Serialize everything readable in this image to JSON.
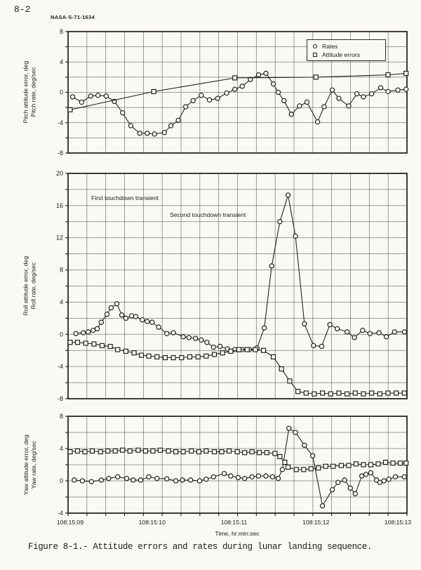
{
  "page": {
    "page_number": "8-2",
    "doc_id": "NASA-S-71-1634",
    "caption": "Figure 8-1.- Attitude errors and rates during lunar landing sequence.",
    "x_axis": {
      "title": "Time, hr:min:sec",
      "tick_labels": [
        "108:15:09",
        "108:15:10",
        "108:15:11",
        "108:15:12",
        "108:15:13"
      ]
    },
    "legend": {
      "rates": "Rates",
      "attitude_errors": "Attitude errors"
    }
  },
  "chart_data": [
    {
      "type": "line",
      "id": "pitch",
      "ylabel_line1": "Pitch attitude error, deg",
      "ylabel_line2": "Pitch rate, deg/sec",
      "ylim": [
        -8,
        8
      ],
      "ytick_step": 4,
      "grid_step": 2,
      "x_seconds_range": [
        0,
        4
      ],
      "grid": "on",
      "legend_position": "upper-right-inside",
      "annotations": [],
      "series": [
        {
          "name": "Rates",
          "marker": "circle",
          "points": [
            [
              0.03,
              -0.6
            ],
            [
              0.14,
              -1.3
            ],
            [
              0.25,
              -0.5
            ],
            [
              0.34,
              -0.4
            ],
            [
              0.44,
              -0.5
            ],
            [
              0.54,
              -1.2
            ],
            [
              0.64,
              -2.7
            ],
            [
              0.74,
              -4.4
            ],
            [
              0.85,
              -5.4
            ],
            [
              0.94,
              -5.4
            ],
            [
              1.03,
              -5.5
            ],
            [
              1.15,
              -5.3
            ],
            [
              1.23,
              -4.4
            ],
            [
              1.32,
              -3.7
            ],
            [
              1.41,
              -1.9
            ],
            [
              1.5,
              -1.1
            ],
            [
              1.6,
              -0.4
            ],
            [
              1.7,
              -1.0
            ],
            [
              1.8,
              -0.8
            ],
            [
              1.91,
              -0.1
            ],
            [
              2.01,
              0.4
            ],
            [
              2.1,
              0.8
            ],
            [
              2.2,
              1.7
            ],
            [
              2.3,
              2.3
            ],
            [
              2.39,
              2.5
            ],
            [
              2.48,
              1.1
            ],
            [
              2.54,
              0.0
            ],
            [
              2.61,
              -1.1
            ],
            [
              2.7,
              -2.9
            ],
            [
              2.8,
              -1.8
            ],
            [
              2.89,
              -1.3
            ],
            [
              3.02,
              -3.9
            ],
            [
              3.1,
              -1.9
            ],
            [
              3.2,
              0.3
            ],
            [
              3.28,
              -0.8
            ],
            [
              3.4,
              -1.8
            ],
            [
              3.5,
              -0.2
            ],
            [
              3.58,
              -0.6
            ],
            [
              3.68,
              -0.2
            ],
            [
              3.79,
              0.6
            ],
            [
              3.88,
              0.1
            ],
            [
              4.0,
              0.3
            ],
            [
              4.1,
              0.4
            ]
          ]
        },
        {
          "name": "Attitude errors",
          "marker": "square",
          "points": [
            [
              0,
              -2.3
            ],
            [
              1.02,
              0.1
            ],
            [
              2.01,
              1.9
            ],
            [
              3.0,
              2.0
            ],
            [
              3.88,
              2.3
            ],
            [
              4.1,
              2.5
            ]
          ]
        }
      ]
    },
    {
      "type": "line",
      "id": "roll",
      "ylabel_line1": "Roll attitude error, deg",
      "ylabel_line2": "Roll rate, deg/sec",
      "ylim": [
        -8,
        20
      ],
      "ytick_step": 4,
      "grid_step": 2,
      "x_seconds_range": [
        0,
        4
      ],
      "grid": "on",
      "annotations": [
        {
          "text": "First touchdown transient",
          "t": 0.29,
          "value": 16.8
        },
        {
          "text": "Second touchdown transient",
          "t": 1.25,
          "value": 14.8
        }
      ],
      "series": [
        {
          "name": "Rates",
          "marker": "circle",
          "points": [
            [
              0.07,
              0.1
            ],
            [
              0.16,
              0.2
            ],
            [
              0.22,
              0.3
            ],
            [
              0.28,
              0.5
            ],
            [
              0.33,
              0.7
            ],
            [
              0.38,
              1.5
            ],
            [
              0.45,
              2.5
            ],
            [
              0.5,
              3.3
            ],
            [
              0.57,
              3.8
            ],
            [
              0.63,
              2.4
            ],
            [
              0.68,
              2.0
            ],
            [
              0.75,
              2.3
            ],
            [
              0.8,
              2.2
            ],
            [
              0.88,
              1.8
            ],
            [
              0.94,
              1.6
            ],
            [
              1.0,
              1.5
            ],
            [
              1.08,
              0.9
            ],
            [
              1.18,
              0.1
            ],
            [
              1.26,
              0.2
            ],
            [
              1.38,
              -0.3
            ],
            [
              1.45,
              -0.4
            ],
            [
              1.53,
              -0.5
            ],
            [
              1.6,
              -0.7
            ],
            [
              1.67,
              -1.0
            ],
            [
              1.75,
              -1.6
            ],
            [
              1.83,
              -1.5
            ],
            [
              1.92,
              -1.8
            ],
            [
              2.01,
              -1.9
            ],
            [
              2.1,
              -1.9
            ],
            [
              2.19,
              -1.9
            ],
            [
              2.28,
              -1.7
            ],
            [
              2.37,
              0.8
            ],
            [
              2.46,
              8.5
            ],
            [
              2.56,
              14.0
            ],
            [
              2.66,
              17.3
            ],
            [
              2.75,
              12.2
            ],
            [
              2.86,
              1.3
            ],
            [
              2.97,
              -1.4
            ],
            [
              3.07,
              -1.5
            ],
            [
              3.17,
              1.2
            ],
            [
              3.26,
              0.7
            ],
            [
              3.38,
              0.3
            ],
            [
              3.47,
              -0.4
            ],
            [
              3.57,
              0.5
            ],
            [
              3.66,
              0.1
            ],
            [
              3.77,
              0.2
            ],
            [
              3.86,
              -0.3
            ],
            [
              3.96,
              0.3
            ],
            [
              4.08,
              0.3
            ]
          ]
        },
        {
          "name": "Attitude errors",
          "marker": "square",
          "points": [
            [
              0,
              -1.0
            ],
            [
              0.09,
              -1.0
            ],
            [
              0.19,
              -1.1
            ],
            [
              0.29,
              -1.2
            ],
            [
              0.39,
              -1.4
            ],
            [
              0.49,
              -1.5
            ],
            [
              0.58,
              -1.9
            ],
            [
              0.68,
              -2.1
            ],
            [
              0.78,
              -2.3
            ],
            [
              0.87,
              -2.6
            ],
            [
              0.96,
              -2.7
            ],
            [
              1.06,
              -2.8
            ],
            [
              1.16,
              -2.9
            ],
            [
              1.26,
              -2.9
            ],
            [
              1.36,
              -2.9
            ],
            [
              1.46,
              -2.8
            ],
            [
              1.56,
              -2.8
            ],
            [
              1.66,
              -2.7
            ],
            [
              1.76,
              -2.5
            ],
            [
              1.86,
              -2.3
            ],
            [
              1.96,
              -2.1
            ],
            [
              2.06,
              -1.9
            ],
            [
              2.16,
              -1.9
            ],
            [
              2.26,
              -1.9
            ],
            [
              2.36,
              -2.0
            ],
            [
              2.48,
              -2.8
            ],
            [
              2.58,
              -4.3
            ],
            [
              2.68,
              -5.8
            ],
            [
              2.78,
              -7.1
            ],
            [
              2.88,
              -7.3
            ],
            [
              2.98,
              -7.4
            ],
            [
              3.08,
              -7.3
            ],
            [
              3.18,
              -7.4
            ],
            [
              3.28,
              -7.3
            ],
            [
              3.38,
              -7.4
            ],
            [
              3.48,
              -7.3
            ],
            [
              3.58,
              -7.4
            ],
            [
              3.68,
              -7.3
            ],
            [
              3.78,
              -7.4
            ],
            [
              3.88,
              -7.3
            ],
            [
              3.98,
              -7.3
            ],
            [
              4.08,
              -7.3
            ]
          ]
        }
      ]
    },
    {
      "type": "line",
      "id": "yaw",
      "ylabel_line1": "Yaw attitude error, deg",
      "ylabel_line2": "Yaw rate, deg/sec",
      "ylim": [
        -4,
        8
      ],
      "ytick_step": 4,
      "grid_step": 2,
      "x_seconds_range": [
        0,
        4
      ],
      "grid": "on",
      "annotations": [],
      "series": [
        {
          "name": "Rates",
          "marker": "circle",
          "points": [
            [
              0.05,
              0.1
            ],
            [
              0.15,
              0.0
            ],
            [
              0.26,
              -0.1
            ],
            [
              0.38,
              0.1
            ],
            [
              0.47,
              0.3
            ],
            [
              0.58,
              0.5
            ],
            [
              0.69,
              0.3
            ],
            [
              0.77,
              0.1
            ],
            [
              0.86,
              0.1
            ],
            [
              0.96,
              0.5
            ],
            [
              1.06,
              0.3
            ],
            [
              1.18,
              0.25
            ],
            [
              1.29,
              0.0
            ],
            [
              1.37,
              0.1
            ],
            [
              1.47,
              0.1
            ],
            [
              1.58,
              0.0
            ],
            [
              1.66,
              0.2
            ],
            [
              1.75,
              0.5
            ],
            [
              1.88,
              0.9
            ],
            [
              1.96,
              0.6
            ],
            [
              2.05,
              0.4
            ],
            [
              2.13,
              0.3
            ],
            [
              2.22,
              0.5
            ],
            [
              2.3,
              0.6
            ],
            [
              2.39,
              0.6
            ],
            [
              2.47,
              0.5
            ],
            [
              2.54,
              0.3
            ],
            [
              2.59,
              1.4
            ],
            [
              2.67,
              6.5
            ],
            [
              2.75,
              6.0
            ],
            [
              2.86,
              4.4
            ],
            [
              2.96,
              3.1
            ],
            [
              3.08,
              -3.1
            ],
            [
              3.2,
              -1.1
            ],
            [
              3.27,
              -0.2
            ],
            [
              3.35,
              0.1
            ],
            [
              3.42,
              -0.9
            ],
            [
              3.48,
              -1.6
            ],
            [
              3.56,
              0.6
            ],
            [
              3.61,
              0.8
            ],
            [
              3.67,
              1.0
            ],
            [
              3.74,
              0.1
            ],
            [
              3.78,
              -0.2
            ],
            [
              3.83,
              0.0
            ],
            [
              3.89,
              0.2
            ],
            [
              3.97,
              0.5
            ],
            [
              4.08,
              0.5
            ]
          ]
        },
        {
          "name": "Attitude errors",
          "marker": "square",
          "points": [
            [
              0.0,
              3.6
            ],
            [
              0.09,
              3.7
            ],
            [
              0.18,
              3.6
            ],
            [
              0.27,
              3.7
            ],
            [
              0.37,
              3.6
            ],
            [
              0.46,
              3.7
            ],
            [
              0.55,
              3.7
            ],
            [
              0.64,
              3.8
            ],
            [
              0.73,
              3.7
            ],
            [
              0.83,
              3.8
            ],
            [
              0.92,
              3.7
            ],
            [
              1.01,
              3.7
            ],
            [
              1.1,
              3.8
            ],
            [
              1.2,
              3.7
            ],
            [
              1.29,
              3.6
            ],
            [
              1.38,
              3.6
            ],
            [
              1.48,
              3.7
            ],
            [
              1.57,
              3.6
            ],
            [
              1.66,
              3.7
            ],
            [
              1.76,
              3.6
            ],
            [
              1.85,
              3.6
            ],
            [
              1.94,
              3.7
            ],
            [
              2.04,
              3.6
            ],
            [
              2.13,
              3.5
            ],
            [
              2.22,
              3.6
            ],
            [
              2.31,
              3.5
            ],
            [
              2.4,
              3.5
            ],
            [
              2.5,
              3.4
            ],
            [
              2.56,
              3.0
            ],
            [
              2.62,
              2.3
            ],
            [
              2.66,
              1.7
            ],
            [
              2.76,
              1.4
            ],
            [
              2.85,
              1.4
            ],
            [
              2.94,
              1.5
            ],
            [
              3.03,
              1.6
            ],
            [
              3.12,
              1.8
            ],
            [
              3.21,
              1.8
            ],
            [
              3.31,
              1.9
            ],
            [
              3.4,
              1.9
            ],
            [
              3.49,
              2.1
            ],
            [
              3.58,
              2.0
            ],
            [
              3.67,
              2.0
            ],
            [
              3.76,
              2.1
            ],
            [
              3.85,
              2.3
            ],
            [
              3.94,
              2.2
            ],
            [
              4.03,
              2.2
            ],
            [
              4.1,
              2.2
            ]
          ]
        }
      ]
    }
  ]
}
